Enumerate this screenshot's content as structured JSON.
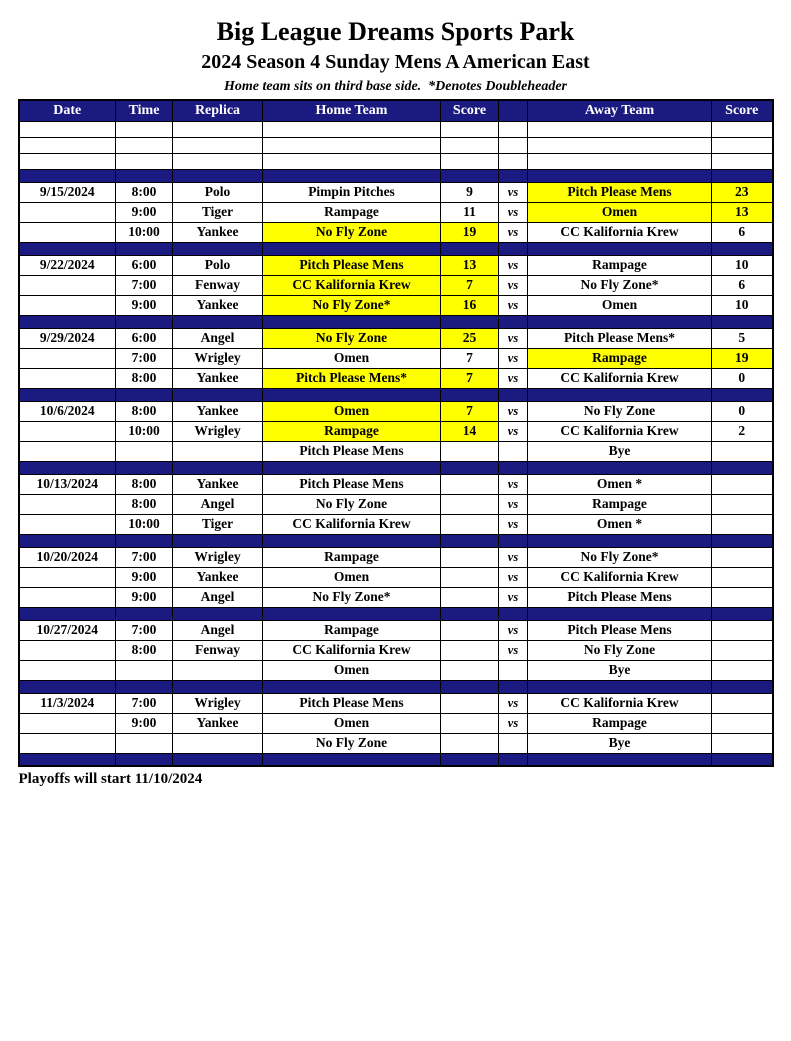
{
  "page": {
    "title": "Big League Dreams Sports Park",
    "subtitle": "2024 Season 4 Sunday Mens A American East",
    "note": "Home team sits on third base side.  *Denotes Doubleheader",
    "footer": "Playoffs will start 11/10/2024"
  },
  "colors": {
    "navy": "#1a1a80",
    "highlight_yellow": "#ffff00",
    "header_text": "#ffffff",
    "body_text": "#000000"
  },
  "table": {
    "headers": [
      "Date",
      "Time",
      "Replica",
      "Home Team",
      "Score",
      "",
      "Away Team",
      "Score"
    ],
    "rows": [
      {
        "type": "empty"
      },
      {
        "type": "empty"
      },
      {
        "type": "empty"
      },
      {
        "type": "separator"
      },
      {
        "type": "game",
        "date": "9/15/2024",
        "time": "8:00",
        "replica": "Polo",
        "home": "Pimpin Pitches",
        "home_score": "9",
        "vs": "vs",
        "away": "Pitch Please Mens",
        "away_score": "23",
        "home_hl": false,
        "away_hl": true
      },
      {
        "type": "game",
        "date": "",
        "time": "9:00",
        "replica": "Tiger",
        "home": "Rampage",
        "home_score": "11",
        "vs": "vs",
        "away": "Omen",
        "away_score": "13",
        "home_hl": false,
        "away_hl": true
      },
      {
        "type": "game",
        "date": "",
        "time": "10:00",
        "replica": "Yankee",
        "home": "No Fly Zone",
        "home_score": "19",
        "vs": "vs",
        "away": "CC Kalifornia Krew",
        "away_score": "6",
        "home_hl": true,
        "away_hl": false
      },
      {
        "type": "separator"
      },
      {
        "type": "game",
        "date": "9/22/2024",
        "time": "6:00",
        "replica": "Polo",
        "home": "Pitch Please Mens",
        "home_score": "13",
        "vs": "vs",
        "away": "Rampage",
        "away_score": "10",
        "home_hl": true,
        "away_hl": false
      },
      {
        "type": "game",
        "date": "",
        "time": "7:00",
        "replica": "Fenway",
        "home": "CC Kalifornia Krew",
        "home_score": "7",
        "vs": "vs",
        "away": "No Fly Zone*",
        "away_score": "6",
        "home_hl": true,
        "away_hl": false
      },
      {
        "type": "game",
        "date": "",
        "time": "9:00",
        "replica": "Yankee",
        "home": "No Fly Zone*",
        "home_score": "16",
        "vs": "vs",
        "away": "Omen",
        "away_score": "10",
        "home_hl": true,
        "away_hl": false
      },
      {
        "type": "separator"
      },
      {
        "type": "game",
        "date": "9/29/2024",
        "time": "6:00",
        "replica": "Angel",
        "home": "No Fly Zone",
        "home_score": "25",
        "vs": "vs",
        "away": "Pitch Please Mens*",
        "away_score": "5",
        "home_hl": true,
        "away_hl": false
      },
      {
        "type": "game",
        "date": "",
        "time": "7:00",
        "replica": "Wrigley",
        "home": "Omen",
        "home_score": "7",
        "vs": "vs",
        "away": "Rampage",
        "away_score": "19",
        "home_hl": false,
        "away_hl": true
      },
      {
        "type": "game",
        "date": "",
        "time": "8:00",
        "replica": "Yankee",
        "home": "Pitch Please Mens*",
        "home_score": "7",
        "vs": "vs",
        "away": "CC Kalifornia Krew",
        "away_score": "0",
        "home_hl": true,
        "away_hl": false
      },
      {
        "type": "separator"
      },
      {
        "type": "game",
        "date": "10/6/2024",
        "time": "8:00",
        "replica": "Yankee",
        "home": "Omen",
        "home_score": "7",
        "vs": "vs",
        "away": "No Fly Zone",
        "away_score": "0",
        "home_hl": true,
        "away_hl": false
      },
      {
        "type": "game",
        "date": "",
        "time": "10:00",
        "replica": "Wrigley",
        "home": "Rampage",
        "home_score": "14",
        "vs": "vs",
        "away": "CC Kalifornia Krew",
        "away_score": "2",
        "home_hl": true,
        "away_hl": false
      },
      {
        "type": "game",
        "date": "",
        "time": "",
        "replica": "",
        "home": "Pitch Please Mens",
        "home_score": "",
        "vs": "",
        "away": "Bye",
        "away_score": "",
        "home_hl": false,
        "away_hl": false
      },
      {
        "type": "separator"
      },
      {
        "type": "game",
        "date": "10/13/2024",
        "time": "8:00",
        "replica": "Yankee",
        "home": "Pitch Please Mens",
        "home_score": "",
        "vs": "vs",
        "away": "Omen *",
        "away_score": "",
        "home_hl": false,
        "away_hl": false
      },
      {
        "type": "game",
        "date": "",
        "time": "8:00",
        "replica": "Angel",
        "home": "No Fly Zone",
        "home_score": "",
        "vs": "vs",
        "away": "Rampage",
        "away_score": "",
        "home_hl": false,
        "away_hl": false
      },
      {
        "type": "game",
        "date": "",
        "time": "10:00",
        "replica": "Tiger",
        "home": "CC Kalifornia Krew",
        "home_score": "",
        "vs": "vs",
        "away": "Omen *",
        "away_score": "",
        "home_hl": false,
        "away_hl": false
      },
      {
        "type": "separator"
      },
      {
        "type": "game",
        "date": "10/20/2024",
        "time": "7:00",
        "replica": "Wrigley",
        "home": "Rampage",
        "home_score": "",
        "vs": "vs",
        "away": "No Fly Zone*",
        "away_score": "",
        "home_hl": false,
        "away_hl": false
      },
      {
        "type": "game",
        "date": "",
        "time": "9:00",
        "replica": "Yankee",
        "home": "Omen",
        "home_score": "",
        "vs": "vs",
        "away": "CC Kalifornia Krew",
        "away_score": "",
        "home_hl": false,
        "away_hl": false
      },
      {
        "type": "game",
        "date": "",
        "time": "9:00",
        "replica": "Angel",
        "home": "No Fly Zone*",
        "home_score": "",
        "vs": "vs",
        "away": "Pitch Please Mens",
        "away_score": "",
        "home_hl": false,
        "away_hl": false
      },
      {
        "type": "separator"
      },
      {
        "type": "game",
        "date": "10/27/2024",
        "time": "7:00",
        "replica": "Angel",
        "home": "Rampage",
        "home_score": "",
        "vs": "vs",
        "away": "Pitch Please Mens",
        "away_score": "",
        "home_hl": false,
        "away_hl": false
      },
      {
        "type": "game",
        "date": "",
        "time": "8:00",
        "replica": "Fenway",
        "home": "CC Kalifornia Krew",
        "home_score": "",
        "vs": "vs",
        "away": "No Fly Zone",
        "away_score": "",
        "home_hl": false,
        "away_hl": false
      },
      {
        "type": "game",
        "date": "",
        "time": "",
        "replica": "",
        "home": "Omen",
        "home_score": "",
        "vs": "",
        "away": "Bye",
        "away_score": "",
        "home_hl": false,
        "away_hl": false
      },
      {
        "type": "separator"
      },
      {
        "type": "game",
        "date": "11/3/2024",
        "time": "7:00",
        "replica": "Wrigley",
        "home": "Pitch Please Mens",
        "home_score": "",
        "vs": "vs",
        "away": "CC Kalifornia Krew",
        "away_score": "",
        "home_hl": false,
        "away_hl": false
      },
      {
        "type": "game",
        "date": "",
        "time": "9:00",
        "replica": "Yankee",
        "home": "Omen",
        "home_score": "",
        "vs": "vs",
        "away": "Rampage",
        "away_score": "",
        "home_hl": false,
        "away_hl": false
      },
      {
        "type": "game",
        "date": "",
        "time": "",
        "replica": "",
        "home": "No Fly Zone",
        "home_score": "",
        "vs": "",
        "away": "Bye",
        "away_score": "",
        "home_hl": false,
        "away_hl": false
      },
      {
        "type": "separator"
      }
    ]
  }
}
